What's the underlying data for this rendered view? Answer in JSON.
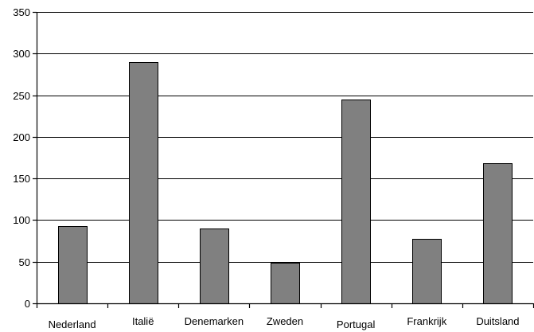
{
  "chart_data": {
    "type": "bar",
    "title": "",
    "xlabel": "",
    "ylabel": "",
    "categories": [
      "Nederland",
      "Italië",
      "Denemarken",
      "Zweden",
      "Portugal",
      "Frankrijk",
      "Duitsland"
    ],
    "values": [
      93,
      290,
      90,
      49,
      245,
      77,
      168
    ],
    "ylim": [
      0,
      350
    ],
    "yticks": [
      0,
      50,
      100,
      150,
      200,
      250,
      300,
      350
    ],
    "grid": true,
    "legend": "none",
    "bar_color": "#808080"
  }
}
